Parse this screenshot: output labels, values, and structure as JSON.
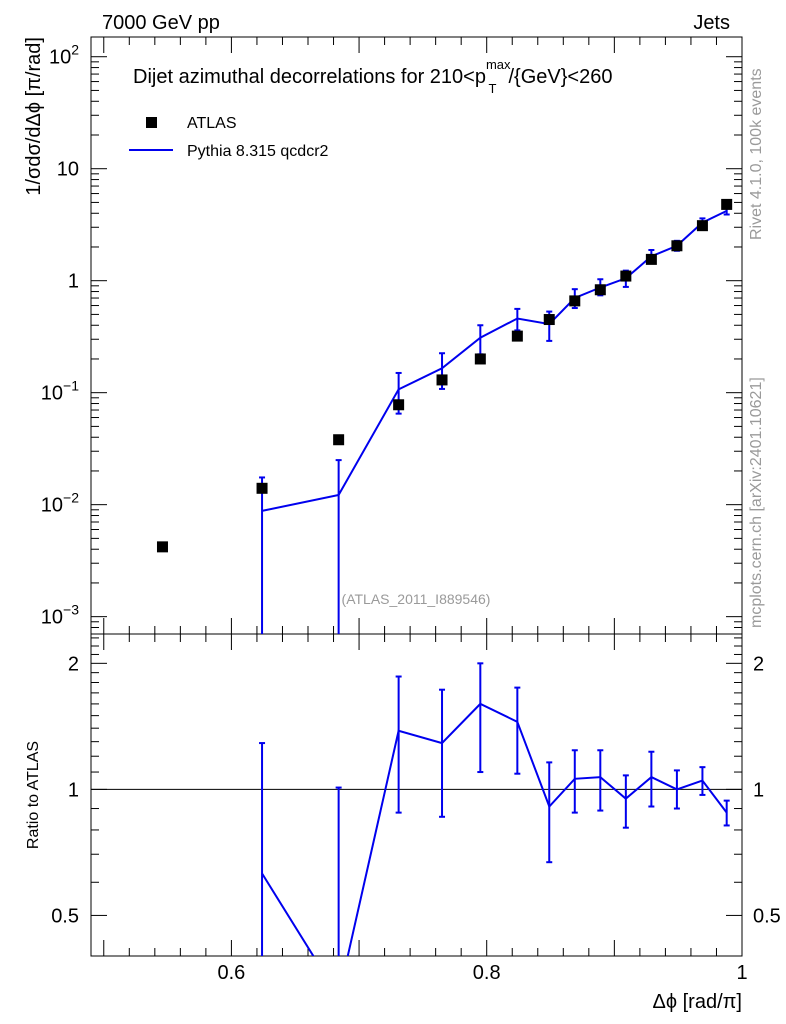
{
  "header": {
    "energy_label": "7000 GeV pp",
    "process_label": "Jets"
  },
  "side_labels": {
    "rivet": "Rivet 4.1.0,  100k events",
    "mcplots": "mcplots.cern.ch [arXiv:2401.10621]"
  },
  "chart_data": [
    {
      "type": "scatter+line",
      "title_prefix": "Dijet azimuthal decorrelations for 210<p",
      "title_sub": "T",
      "title_sup": "max",
      "title_suffix": "/{GeV}<260",
      "analysis_tag": "(ATLAS_2011_I889546)",
      "xlabel": "Δϕ [rad/π]",
      "ylabel": "1/σdσ/dΔϕ [π/rad]",
      "xlim": [
        0.49,
        1.0
      ],
      "ylim": [
        0.0007,
        150
      ],
      "yscale": "log",
      "y_ticks": [
        {
          "value": 0.001,
          "base": "10",
          "exp": "−3"
        },
        {
          "value": 0.01,
          "base": "10",
          "exp": "−2"
        },
        {
          "value": 0.1,
          "base": "10",
          "exp": "−1"
        },
        {
          "value": 1,
          "base": "1",
          "exp": ""
        },
        {
          "value": 10,
          "base": "10",
          "exp": ""
        },
        {
          "value": 100,
          "base": "10",
          "exp": "2"
        }
      ],
      "legend": [
        {
          "name": "ATLAS",
          "marker": "square",
          "color": "#000000"
        },
        {
          "name": "Pythia 8.315 qcdcr2",
          "marker": "line",
          "color": "#0000ee"
        }
      ],
      "series": [
        {
          "name": "ATLAS",
          "x": [
            0.546,
            0.624,
            0.684,
            0.731,
            0.765,
            0.795,
            0.824,
            0.849,
            0.869,
            0.889,
            0.909,
            0.929,
            0.949,
            0.969,
            0.988
          ],
          "y": [
            0.0042,
            0.014,
            0.038,
            0.078,
            0.13,
            0.2,
            0.32,
            0.45,
            0.66,
            0.83,
            1.1,
            1.55,
            2.05,
            3.1,
            4.8
          ]
        },
        {
          "name": "Pythia 8.315 qcdcr2",
          "x": [
            0.624,
            0.684,
            0.731,
            0.765,
            0.795,
            0.824,
            0.849,
            0.869,
            0.889,
            0.909,
            0.929,
            0.949,
            0.969,
            0.988
          ],
          "y": [
            0.0088,
            0.0122,
            0.107,
            0.165,
            0.31,
            0.46,
            0.41,
            0.7,
            0.87,
            1.05,
            1.65,
            2.05,
            3.3,
            4.2
          ],
          "y_low": [
            0.0002,
            0.0002,
            0.065,
            0.108,
            0.22,
            0.36,
            0.29,
            0.57,
            0.74,
            0.88,
            1.43,
            1.85,
            3.0,
            3.9
          ],
          "y_high": [
            0.0175,
            0.025,
            0.15,
            0.225,
            0.4,
            0.56,
            0.53,
            0.84,
            1.03,
            1.23,
            1.88,
            2.27,
            3.6,
            4.55
          ]
        }
      ]
    },
    {
      "type": "ratio",
      "ylabel": "Ratio to ATLAS",
      "xlabel": "Δϕ [rad/π]",
      "xlim": [
        0.49,
        1.0
      ],
      "ylim": [
        0.4,
        2.35
      ],
      "yscale": "log",
      "y_ticks": [
        {
          "value": 0.5,
          "label": "0.5"
        },
        {
          "value": 1,
          "label": "1"
        },
        {
          "value": 2,
          "label": "2"
        }
      ],
      "x_ticks": [
        {
          "value": 0.6,
          "label": "0.6"
        },
        {
          "value": 0.8,
          "label": "0.8"
        },
        {
          "value": 1.0,
          "label": "1"
        }
      ],
      "reference_line": 1,
      "series": [
        {
          "name": "Pythia 8.315 qcdcr2",
          "color": "#0000ee",
          "x": [
            0.624,
            0.684,
            0.731,
            0.765,
            0.795,
            0.824,
            0.849,
            0.869,
            0.889,
            0.909,
            0.929,
            0.949,
            0.969,
            0.988
          ],
          "y": [
            0.63,
            0.32,
            1.38,
            1.29,
            1.6,
            1.45,
            0.91,
            1.06,
            1.07,
            0.95,
            1.07,
            1.0,
            1.05,
            0.88
          ],
          "y_low": [
            0.01,
            0.01,
            0.88,
            0.86,
            1.1,
            1.09,
            0.67,
            0.88,
            0.89,
            0.81,
            0.91,
            0.9,
            0.97,
            0.82
          ],
          "y_high": [
            1.29,
            1.01,
            1.86,
            1.73,
            2.0,
            1.75,
            1.16,
            1.24,
            1.24,
            1.08,
            1.23,
            1.11,
            1.13,
            0.94
          ]
        }
      ]
    }
  ]
}
